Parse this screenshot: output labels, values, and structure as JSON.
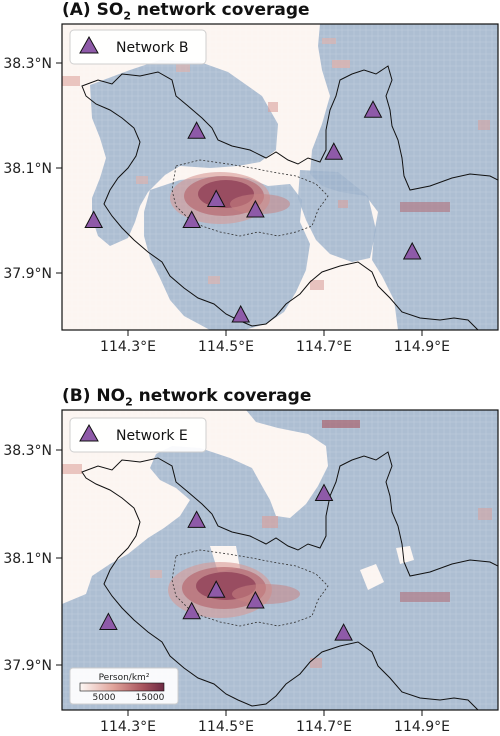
{
  "panels": [
    {
      "id": "A",
      "title_prefix": "(A) SO",
      "title_sub": "2",
      "title_suffix": " network coverage",
      "legend_label": "Network B",
      "stations": [
        {
          "lon": 114.44,
          "lat": 38.17
        },
        {
          "lon": 114.72,
          "lat": 38.13
        },
        {
          "lon": 114.8,
          "lat": 38.21
        },
        {
          "lon": 114.48,
          "lat": 38.04
        },
        {
          "lon": 114.56,
          "lat": 38.02
        },
        {
          "lon": 114.43,
          "lat": 38.0
        },
        {
          "lon": 114.23,
          "lat": 38.0
        },
        {
          "lon": 114.53,
          "lat": 37.82
        },
        {
          "lon": 114.88,
          "lat": 37.94
        }
      ]
    },
    {
      "id": "B",
      "title_prefix": "(B) NO",
      "title_sub": "2",
      "title_suffix": " network coverage",
      "legend_label": "Network E",
      "stations": [
        {
          "lon": 114.44,
          "lat": 38.17
        },
        {
          "lon": 114.7,
          "lat": 38.22
        },
        {
          "lon": 114.48,
          "lat": 38.04
        },
        {
          "lon": 114.56,
          "lat": 38.02
        },
        {
          "lon": 114.43,
          "lat": 38.0
        },
        {
          "lon": 114.26,
          "lat": 37.98
        },
        {
          "lon": 114.74,
          "lat": 37.96
        }
      ]
    }
  ],
  "axes": {
    "x_ticks": [
      "114.3°E",
      "114.5°E",
      "114.7°E",
      "114.9°E"
    ],
    "y_ticks": [
      "38.3°N",
      "38.1°N",
      "37.9°N"
    ]
  },
  "colorbar": {
    "label": "Person/km²",
    "tick_1": "5000",
    "tick_2": "15000",
    "colors": [
      "#fdf8f5",
      "#e0a39a",
      "#a8545e",
      "#6d2a44"
    ]
  },
  "colors": {
    "coverage": "#9fb4cc",
    "station": "#8e5aa8",
    "background": "#fcf5f1"
  }
}
